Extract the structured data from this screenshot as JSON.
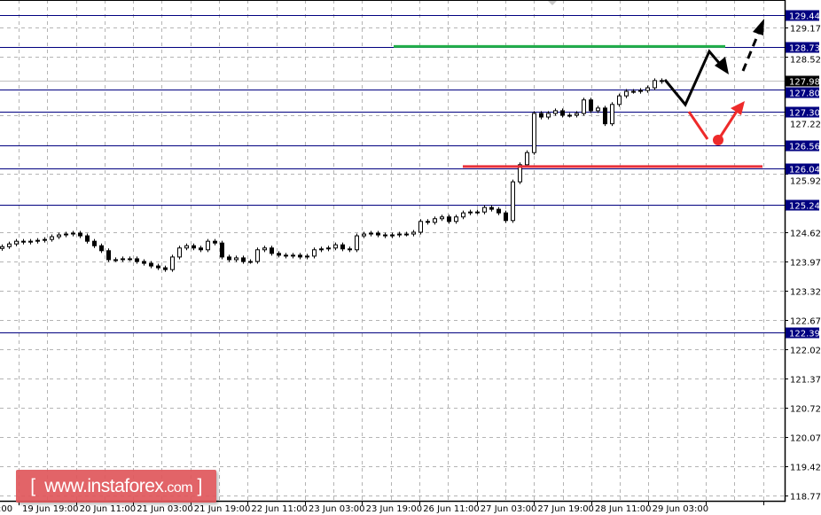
{
  "chart_data": {
    "type": "candlestick",
    "title": "",
    "y_axis": {
      "range": [
        118.77,
        129.6
      ],
      "ticks": [
        129.17,
        128.52,
        127.22,
        125.92,
        124.62,
        123.97,
        123.32,
        122.67,
        122.02,
        121.37,
        120.72,
        120.07,
        119.42,
        118.77
      ],
      "position": "right"
    },
    "x_axis": {
      "partial_left_label": ":00",
      "tick_labels": [
        "19 Jun 19:00",
        "20 Jun 11:00",
        "21 Jun 03:00",
        "21 Jun 19:00",
        "22 Jun 11:00",
        "23 Jun 03:00",
        "23 Jun 19:00",
        "26 Jun 11:00",
        "27 Jun 03:00",
        "27 Jun 19:00",
        "28 Jun 11:00",
        "29 Jun 03:00"
      ]
    },
    "grid": true,
    "closes": [
      124.3,
      124.36,
      124.42,
      124.4,
      124.42,
      124.44,
      124.46,
      124.52,
      124.56,
      124.58,
      124.6,
      124.54,
      124.42,
      124.32,
      124.21,
      124.01,
      124.01,
      124.03,
      124.03,
      123.97,
      123.93,
      123.87,
      123.83,
      123.79,
      124.07,
      124.27,
      124.32,
      124.27,
      124.23,
      124.42,
      124.38,
      124.07,
      124.01,
      124.05,
      123.97,
      123.97,
      124.23,
      124.27,
      124.15,
      124.11,
      124.09,
      124.11,
      124.07,
      124.09,
      124.23,
      124.25,
      124.27,
      124.34,
      124.25,
      124.23,
      124.54,
      124.58,
      124.6,
      124.56,
      124.54,
      124.56,
      124.58,
      124.58,
      124.62,
      124.86,
      124.84,
      124.92,
      124.96,
      124.86,
      124.96,
      125.05,
      125.07,
      125.07,
      125.17,
      125.13,
      125.05,
      124.88,
      125.74,
      126.12,
      126.39,
      127.26,
      127.18,
      127.26,
      127.32,
      127.22,
      127.22,
      127.26,
      127.56,
      127.32,
      127.38,
      127.03,
      127.46,
      127.65,
      127.75,
      127.75,
      127.77,
      127.83,
      127.99,
      127.97
    ],
    "levels": [
      {
        "price": "129.44",
        "color": "#000080"
      },
      {
        "price": "128.73",
        "color": "#000080"
      },
      {
        "price": "127.80",
        "color": "#000080"
      },
      {
        "price": "127.30",
        "color": "#000080"
      },
      {
        "price": "126.56",
        "color": "#000080"
      },
      {
        "price": "126.04",
        "color": "#000080"
      },
      {
        "price": "125.24",
        "color": "#000080"
      },
      {
        "price": "122.39",
        "color": "#000080"
      }
    ],
    "current_price": "127.98",
    "resistance_line": {
      "price": 128.75,
      "color": "#22b04a"
    },
    "support_line": {
      "price": 126.08,
      "color": "#e8303a"
    },
    "forecast_colors": {
      "bullish": "#000000",
      "alternative": "#ee2a2a"
    }
  },
  "watermark": {
    "open": "[",
    "text": "www.instaforex",
    "suffix": ".com",
    "close": "]"
  }
}
